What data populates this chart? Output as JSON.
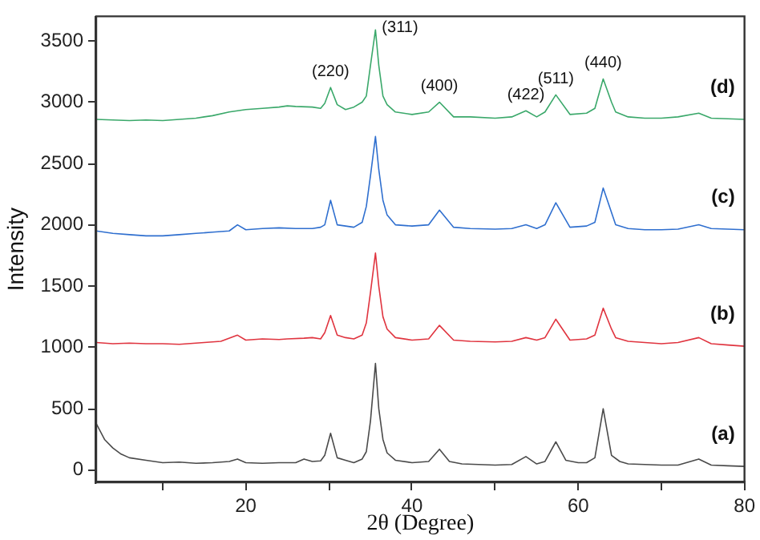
{
  "chart_data": {
    "type": "line",
    "xlabel": "2θ (Degree)",
    "ylabel": "Intensity",
    "xlim": [
      2,
      80
    ],
    "ylim": [
      -100,
      3700
    ],
    "xticks": [
      {
        "value": 10,
        "label": null
      },
      20,
      {
        "value": 30,
        "label": null
      },
      40,
      {
        "value": 50,
        "label": null
      },
      60,
      {
        "value": 70,
        "label": null
      },
      80
    ],
    "yticks": [
      0,
      500,
      1000,
      1500,
      2000,
      2500,
      3000,
      3500
    ],
    "grid": false,
    "legend": false,
    "marker": "none",
    "line_style": "solid",
    "series": [
      {
        "name": "(a)",
        "color": "#4a4a4a",
        "x": [
          2,
          3,
          4,
          5,
          6,
          8,
          10,
          12,
          14,
          16,
          18,
          19,
          20,
          22,
          24,
          26,
          27,
          28,
          29,
          29.5,
          30.2,
          31,
          32,
          33,
          34,
          34.5,
          35,
          35.6,
          36,
          36.5,
          37,
          38,
          40,
          42,
          43.3,
          44.5,
          46,
          48,
          50,
          52,
          53.7,
          55,
          56,
          57.3,
          58.5,
          60,
          61,
          62,
          63,
          64,
          65,
          66,
          68,
          70,
          72,
          74.5,
          76,
          78,
          80
        ],
        "values": [
          380,
          250,
          180,
          130,
          100,
          80,
          60,
          65,
          55,
          60,
          70,
          90,
          60,
          55,
          60,
          60,
          90,
          70,
          75,
          120,
          300,
          100,
          80,
          60,
          90,
          150,
          400,
          870,
          500,
          250,
          140,
          80,
          60,
          70,
          170,
          70,
          50,
          45,
          40,
          45,
          110,
          50,
          70,
          230,
          80,
          60,
          60,
          100,
          500,
          120,
          70,
          50,
          45,
          40,
          40,
          90,
          40,
          35,
          30
        ]
      },
      {
        "name": "(b)",
        "color": "#e0343f",
        "x": [
          2,
          4,
          6,
          8,
          10,
          12,
          14,
          15,
          17,
          19,
          20,
          22,
          24,
          25,
          27,
          28,
          29,
          29.5,
          30.2,
          31,
          32,
          33,
          34,
          34.5,
          35,
          35.6,
          36,
          36.5,
          37,
          38,
          40,
          42,
          43.3,
          45,
          47,
          50,
          52,
          53.7,
          55,
          56,
          57.3,
          59,
          61,
          62,
          63,
          64,
          64.5,
          66,
          68,
          70,
          72,
          74.5,
          76,
          78,
          80
        ],
        "values": [
          1040,
          1030,
          1035,
          1030,
          1030,
          1025,
          1035,
          1040,
          1050,
          1100,
          1060,
          1070,
          1065,
          1070,
          1075,
          1080,
          1070,
          1120,
          1260,
          1100,
          1080,
          1070,
          1100,
          1200,
          1450,
          1770,
          1500,
          1250,
          1150,
          1080,
          1060,
          1070,
          1180,
          1060,
          1050,
          1045,
          1050,
          1080,
          1060,
          1080,
          1230,
          1060,
          1070,
          1100,
          1320,
          1150,
          1080,
          1050,
          1040,
          1030,
          1040,
          1080,
          1030,
          1020,
          1010
        ]
      },
      {
        "name": "(c)",
        "color": "#2f6fcf",
        "x": [
          2,
          4,
          6,
          8,
          10,
          12,
          14,
          16,
          18,
          19,
          20,
          22,
          24,
          26,
          28,
          29,
          29.5,
          30.2,
          31,
          32,
          33,
          34,
          34.5,
          35,
          35.6,
          36,
          36.5,
          37,
          38,
          40,
          42,
          43.3,
          45,
          47,
          50,
          52,
          53.7,
          55,
          56,
          57.3,
          59,
          61,
          62,
          63,
          64,
          64.5,
          66,
          68,
          70,
          72,
          74.5,
          76,
          78,
          80
        ],
        "values": [
          1950,
          1930,
          1920,
          1910,
          1910,
          1920,
          1930,
          1940,
          1950,
          2000,
          1960,
          1970,
          1975,
          1970,
          1970,
          1980,
          2000,
          2200,
          2000,
          1990,
          1980,
          2020,
          2150,
          2400,
          2720,
          2450,
          2200,
          2080,
          2000,
          1990,
          2000,
          2120,
          1980,
          1970,
          1965,
          1970,
          2000,
          1970,
          2000,
          2180,
          1980,
          1990,
          2020,
          2300,
          2100,
          2000,
          1970,
          1960,
          1960,
          1965,
          2000,
          1970,
          1965,
          1960
        ]
      },
      {
        "name": "(d)",
        "color": "#3aa86a",
        "x": [
          2,
          4,
          6,
          8,
          10,
          12,
          14,
          15,
          16,
          18,
          20,
          22,
          24,
          25,
          26,
          28,
          29,
          29.5,
          30.2,
          31,
          32,
          33,
          34,
          34.5,
          35,
          35.6,
          36,
          36.5,
          37,
          38,
          40,
          42,
          43.3,
          45,
          47,
          50,
          52,
          53.7,
          55,
          56,
          57.3,
          59,
          61,
          62,
          63,
          64,
          64.5,
          66,
          68,
          70,
          72,
          74.5,
          76,
          78,
          80
        ],
        "values": [
          2860,
          2855,
          2850,
          2855,
          2850,
          2860,
          2870,
          2880,
          2890,
          2920,
          2940,
          2950,
          2960,
          2970,
          2965,
          2960,
          2950,
          2990,
          3120,
          2980,
          2940,
          2960,
          3000,
          3050,
          3300,
          3590,
          3300,
          3050,
          2980,
          2920,
          2900,
          2920,
          3000,
          2880,
          2880,
          2870,
          2880,
          2930,
          2880,
          2920,
          3060,
          2900,
          2910,
          2950,
          3190,
          3000,
          2920,
          2880,
          2870,
          2870,
          2880,
          2910,
          2870,
          2865,
          2860
        ]
      }
    ],
    "annotations": [
      {
        "text": "(220)",
        "x": 30.2,
        "y": 3120
      },
      {
        "text": "(311)",
        "x": 35.6,
        "y": 3590
      },
      {
        "text": "(400)",
        "x": 43.3,
        "y": 3000
      },
      {
        "text": "(422)",
        "x": 53.7,
        "y": 2930
      },
      {
        "text": "(511)",
        "x": 57.3,
        "y": 3060
      },
      {
        "text": "(440)",
        "x": 63,
        "y": 3190
      }
    ]
  }
}
